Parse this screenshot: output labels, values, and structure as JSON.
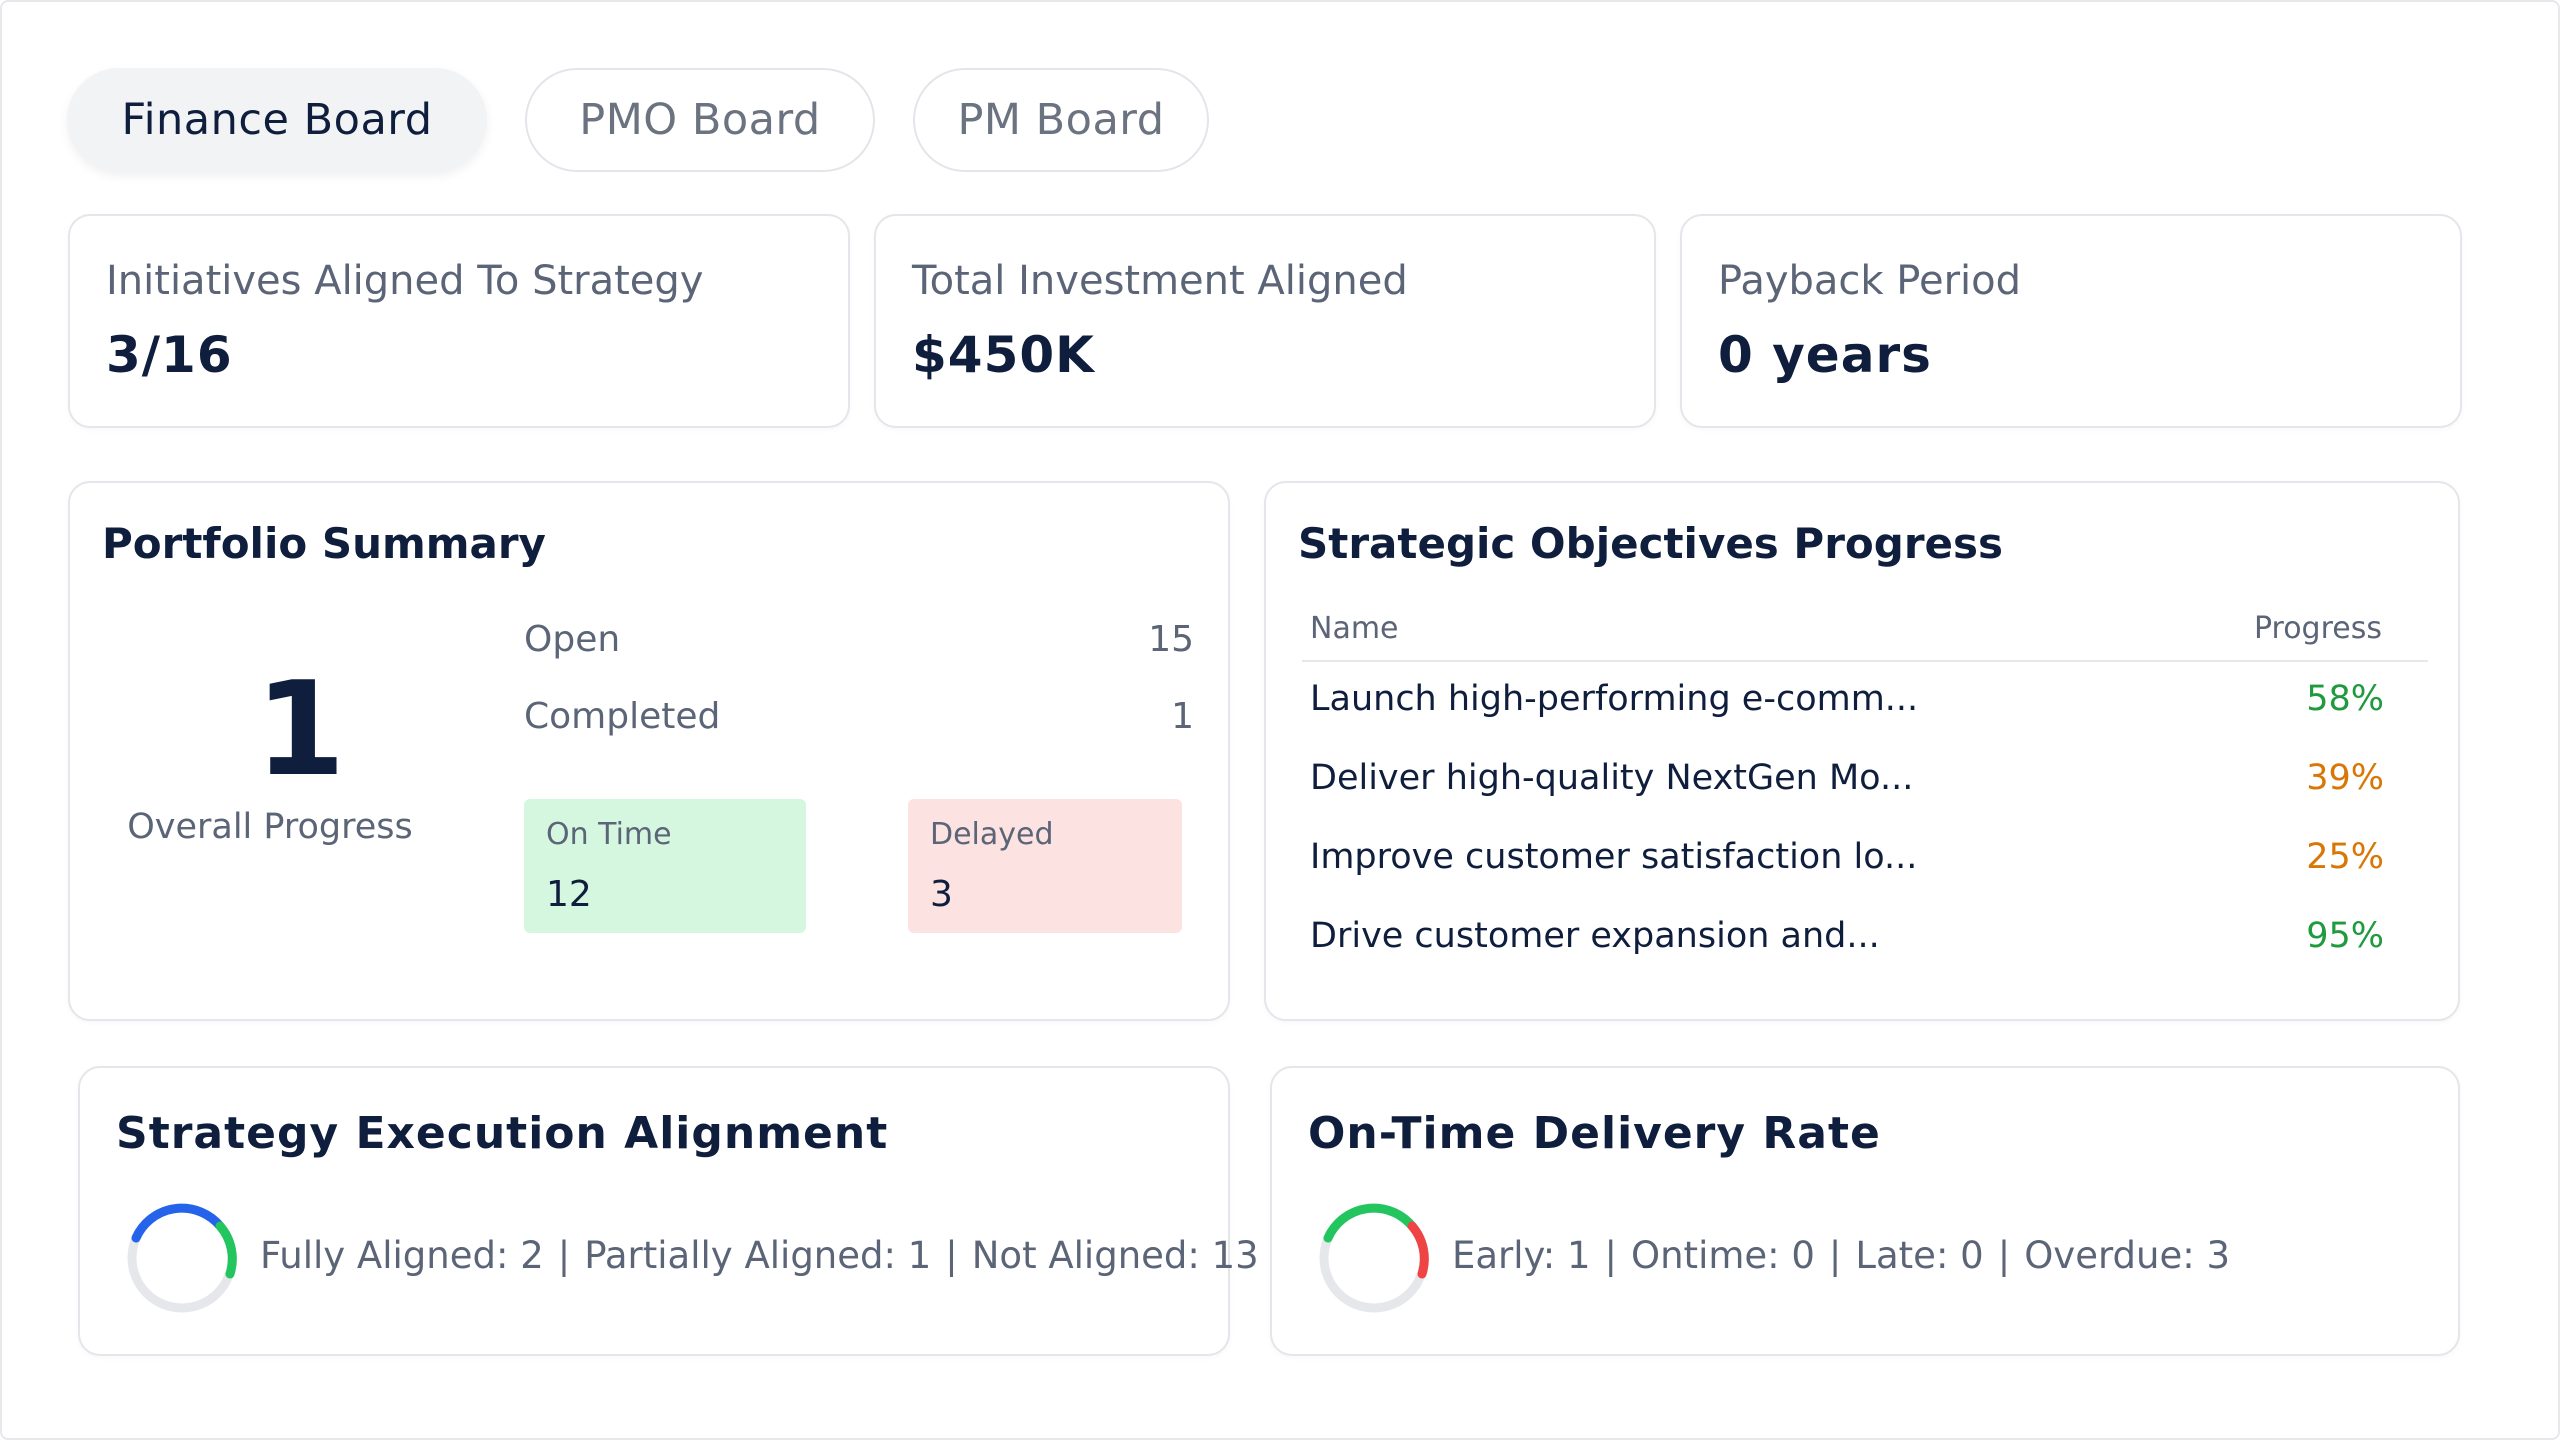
{
  "tabs": [
    {
      "label": "Finance Board",
      "active": true
    },
    {
      "label": "PMO Board",
      "active": false
    },
    {
      "label": "PM Board",
      "active": false
    }
  ],
  "kpis": [
    {
      "label": "Initiatives Aligned To Strategy",
      "value": "3/16"
    },
    {
      "label": "Total Investment Aligned",
      "value": "$450K"
    },
    {
      "label": "Payback Period",
      "value": "0 years"
    }
  ],
  "portfolio": {
    "title": "Portfolio Summary",
    "overall_value": "1",
    "overall_label": "Overall Progress",
    "open_label": "Open",
    "open_value": "15",
    "completed_label": "Completed",
    "completed_value": "1",
    "ontime_label": "On Time",
    "ontime_value": "12",
    "delayed_label": "Delayed",
    "delayed_value": "3"
  },
  "objectives": {
    "title": "Strategic Objectives Progress",
    "col_name": "Name",
    "col_progress": "Progress",
    "rows": [
      {
        "name": "Launch high-performing e-comm...",
        "progress": "58%",
        "color": "#1f9a3e"
      },
      {
        "name": "Deliver high-quality NextGen Mo...",
        "progress": "39%",
        "color": "#d97706"
      },
      {
        "name": "Improve customer satisfaction lo...",
        "progress": "25%",
        "color": "#d97706"
      },
      {
        "name": "Drive customer expansion and...",
        "progress": "95%",
        "color": "#1f9a3e"
      }
    ]
  },
  "alignment": {
    "title": "Strategy Execution Alignment",
    "items": [
      "Fully Aligned: 2",
      "Partially Aligned: 1",
      "Not Aligned: 13"
    ],
    "separator": "|",
    "colors": {
      "fully": "#2563eb",
      "partially": "#22c55e",
      "track": "#e5e7eb"
    }
  },
  "delivery": {
    "title": "On-Time Delivery Rate",
    "items": [
      "Early: 1",
      "Ontime: 0",
      "Late: 0",
      "Overdue: 3"
    ],
    "separator": "|",
    "colors": {
      "early": "#22c55e",
      "overdue": "#ef4444",
      "track": "#e5e7eb"
    }
  }
}
